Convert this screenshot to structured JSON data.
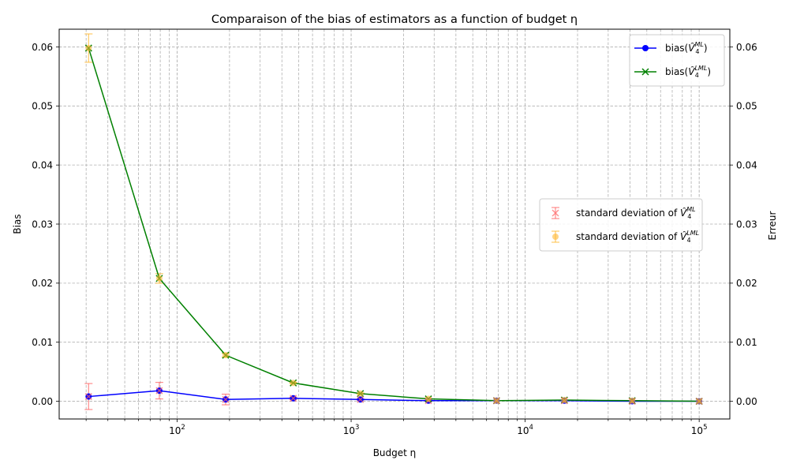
{
  "chart_data": {
    "type": "line",
    "title": "Comparaison of the bias of estimators as a function of budget η",
    "xlabel": "Budget η",
    "ylabel": "Bias",
    "ylabel_right": "Erreur",
    "xscale": "log",
    "xlim": [
      21,
      150000
    ],
    "ylim": [
      -0.003,
      0.063
    ],
    "grid": "on (major and minor, dashed)",
    "x_tick_labels": [
      {
        "value": 100,
        "base": "10",
        "exp": "2"
      },
      {
        "value": 1000,
        "base": "10",
        "exp": "3"
      },
      {
        "value": 10000,
        "base": "10",
        "exp": "4"
      },
      {
        "value": 100000,
        "base": "10",
        "exp": "5"
      }
    ],
    "y_ticks": [
      0.0,
      0.01,
      0.02,
      0.03,
      0.04,
      0.05,
      0.06
    ],
    "y_tick_labels": [
      "0.00",
      "0.01",
      "0.02",
      "0.03",
      "0.04",
      "0.05",
      "0.06"
    ],
    "x": [
      31,
      79,
      190,
      465,
      1130,
      2780,
      6850,
      16800,
      41200,
      100000
    ],
    "series": [
      {
        "name": "bias(V̂4^ML)",
        "label_base": "bias(",
        "label_sym": "V̂",
        "label_sub": "4",
        "label_sup": "ML",
        "label_end": ")",
        "color": "#0000ff",
        "marker": "circle",
        "values": [
          0.0008,
          0.0018,
          0.0003,
          0.0005,
          0.0003,
          0.0001,
          0.0001,
          0.0001,
          0.0,
          0.0
        ]
      },
      {
        "name": "bias(V̂4^LML)",
        "label_base": "bias(",
        "label_sym": "V̂",
        "label_sub": "4",
        "label_sup": "LML",
        "label_end": ")",
        "color": "#008000",
        "marker": "x",
        "values": [
          0.0598,
          0.0208,
          0.0078,
          0.0031,
          0.0013,
          0.0004,
          0.0001,
          0.0002,
          0.0001,
          0.0
        ]
      }
    ],
    "error_bars": [
      {
        "name": "standard deviation of V̂4^ML",
        "label_base": "standard deviation of ",
        "label_sym": "V̂",
        "label_sub": "4",
        "label_sup": "ML",
        "color": "#ff6666",
        "marker": "x",
        "values": [
          0.0008,
          0.0018,
          0.0003,
          0.0005,
          0.0003,
          0.0001,
          0.0001,
          0.0001,
          0.0,
          0.0
        ],
        "errors": [
          0.0022,
          0.0014,
          0.0009,
          0.0002,
          0.0001,
          0.0001,
          0.0,
          0.0,
          0.0,
          0.0
        ]
      },
      {
        "name": "standard deviation of V̂4^LML",
        "label_base": "standard deviation of ",
        "label_sym": "V̂",
        "label_sub": "4",
        "label_sup": "LML",
        "color": "#ffb833",
        "marker": "circle",
        "values": [
          0.0598,
          0.0208,
          0.0078,
          0.0031,
          0.0013,
          0.0004,
          0.0001,
          0.0002,
          0.0001,
          0.0
        ],
        "errors": [
          0.0024,
          0.0008,
          0.0003,
          0.0001,
          0.0001,
          0.0,
          0.0,
          0.0,
          0.0,
          0.0
        ]
      }
    ],
    "legend_lines_placement": "upper right",
    "legend_errors_placement": "center right"
  }
}
